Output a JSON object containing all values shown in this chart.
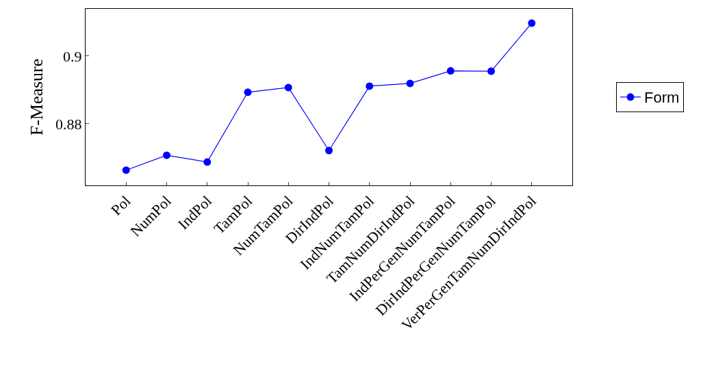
{
  "chart_data": {
    "type": "line",
    "ylabel": "F-Measure",
    "categories": [
      "Pol",
      "NumPol",
      "IndPol",
      "TamPol",
      "NumTamPol",
      "DirIndPol",
      "IndNumTamPol",
      "TamNumDirIndPol",
      "IndPerGenNumTamPol",
      "DirIndPerGenNumTamPol",
      "VerPerGenTamNumDirIndPol"
    ],
    "series": [
      {
        "name": "Form",
        "color": "#0000ff",
        "values": [
          0.8663,
          0.8707,
          0.8687,
          0.8893,
          0.8907,
          0.8721,
          0.8911,
          0.8919,
          0.8956,
          0.8955,
          0.9097
        ]
      }
    ],
    "ylim": [
      0.8618,
      0.9139
    ],
    "yticks": [
      0.88,
      0.9
    ],
    "grid": false,
    "legend": "right",
    "marker": "circle",
    "line_style": "solid"
  }
}
